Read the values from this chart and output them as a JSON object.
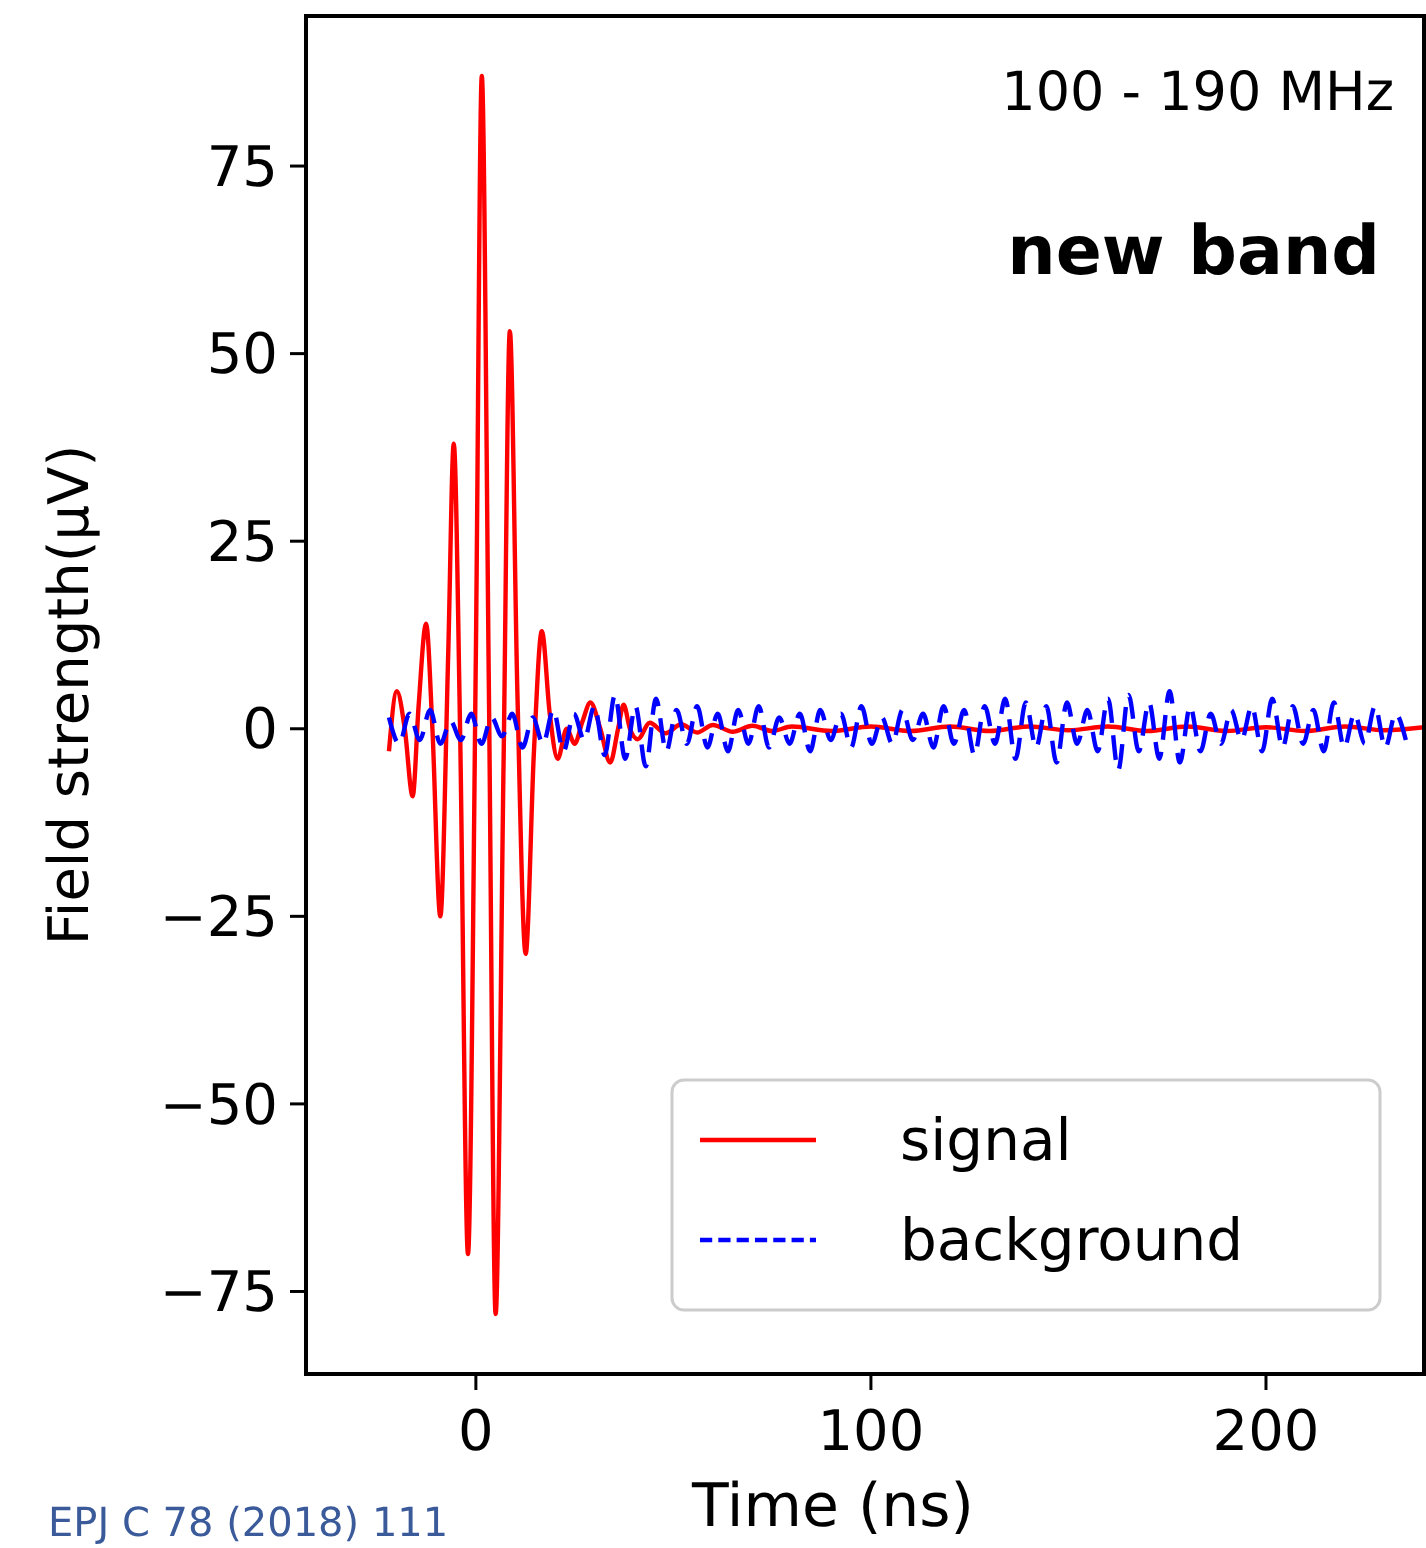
{
  "chart_data": {
    "type": "line",
    "xlabel": "Time (ns)",
    "ylabel": "Field strength(μV)",
    "xlim": [
      -43,
      240
    ],
    "xticks": [
      0,
      100,
      200
    ],
    "ylim": [
      -86,
      95
    ],
    "yticks": [
      {
        "value": -75,
        "label": "−75"
      },
      {
        "value": -50,
        "label": "−50"
      },
      {
        "value": -25,
        "label": "−25"
      },
      0,
      25,
      50,
      75
    ],
    "legend": "bottom right",
    "annotations": [
      "100 - 190 MHz",
      "new band",
      "EPJ C 78 (2018) 111"
    ],
    "series": [
      {
        "name": "signal",
        "color": "#ff0000",
        "line_style": "solid",
        "x": [
          -22,
          -20,
          -18,
          -16,
          -14.5,
          -12.6,
          -11,
          -9,
          -7,
          -5.6,
          -4,
          -2,
          0,
          1.5,
          3.3,
          5,
          7,
          8.6,
          10.5,
          12.6,
          14.7,
          16.7,
          18.7,
          20.7,
          23,
          25,
          27,
          29,
          31.5,
          34,
          36,
          37.4,
          39,
          41,
          44,
          48,
          52,
          56,
          60,
          65,
          70,
          75,
          80,
          90,
          100,
          110,
          120,
          130,
          140,
          150,
          160,
          170,
          180,
          190,
          200,
          210,
          220,
          230,
          240
        ],
        "values": [
          -3,
          5,
          0,
          -9,
          3,
          14,
          0,
          -25,
          10,
          38,
          0,
          -70,
          10,
          87,
          5,
          -78,
          -5,
          53,
          5,
          -30,
          -3,
          13,
          2,
          -4,
          0,
          -2,
          1,
          3.5,
          0,
          -4.5,
          0,
          3.2,
          0,
          -1.4,
          0.8,
          -0.6,
          0.6,
          -0.5,
          0.5,
          -0.4,
          0.4,
          -0.3,
          0.3,
          -0.3,
          0.3,
          -0.3,
          0.3,
          -0.3,
          0.3,
          -0.2,
          0.3,
          -0.3,
          0.3,
          -0.3,
          0.2,
          -0.3,
          0.3,
          -0.2,
          0.2
        ]
      },
      {
        "name": "background",
        "color": "#0000ff",
        "line_style": "dashed",
        "x": [
          -22,
          -19.4,
          -16.8,
          -14.2,
          -11.6,
          -9,
          -6.4,
          -3.8,
          -1.2,
          1.4,
          4,
          6.6,
          9.2,
          11.8,
          14.4,
          17,
          19.6,
          22.2,
          24.8,
          27.4,
          30,
          32.6,
          35.2,
          37.8,
          40.4,
          43,
          45.6,
          48.2,
          50.8,
          53.4,
          56,
          58.6,
          61.2,
          63.8,
          66.4,
          69,
          71.6,
          74.2,
          76.8,
          79.4,
          82,
          84.6,
          87.2,
          89.8,
          92.4,
          95,
          97.6,
          100.2,
          102.8,
          105.4,
          108,
          110.6,
          113.2,
          115.8,
          118.4,
          121,
          123.6,
          126.2,
          128.8,
          131.4,
          134,
          136.6,
          139.2,
          141.8,
          144.4,
          147,
          149.6,
          152.2,
          154.8,
          157.4,
          160,
          162.6,
          165.2,
          167.8,
          170.4,
          173,
          175.6,
          178.2,
          180.8,
          183.4,
          186,
          188.6,
          191.2,
          193.8,
          196.4,
          199,
          201.6,
          204.2,
          206.8,
          209.4,
          212,
          214.6,
          217.2,
          219.8,
          222.4,
          225,
          227.6,
          230.2,
          232.8,
          235.4
        ],
        "values": [
          1.5,
          -2,
          2,
          -1.5,
          2.5,
          -2,
          1,
          -1.5,
          2,
          -2,
          1.5,
          -1,
          2,
          -2.5,
          1.5,
          -2,
          2.5,
          -3,
          2,
          -1.5,
          3,
          -3.5,
          4.5,
          -4,
          3,
          -5,
          4,
          -3,
          2.5,
          -2,
          3,
          -2.5,
          2,
          -3,
          2.5,
          -2,
          3,
          -2.5,
          1.5,
          -2,
          2,
          -3,
          2.5,
          -1.5,
          2,
          -2.5,
          3,
          -2,
          1.5,
          -2,
          2.5,
          -1.5,
          2,
          -2.5,
          3,
          -2,
          2.5,
          -3.5,
          3,
          -2,
          4,
          -4,
          3.5,
          -2.5,
          3,
          -4.5,
          3.5,
          -2,
          2.5,
          -3,
          4,
          -5.5,
          4.5,
          -3,
          3.5,
          -4,
          5,
          -4.5,
          3,
          -3,
          2,
          -2,
          2.5,
          -1.5,
          3,
          -3,
          4,
          -2.5,
          3,
          -2,
          2.5,
          -3,
          3.5,
          -2.5,
          2,
          -2,
          3,
          -2.5,
          2,
          -1.5
        ]
      }
    ]
  }
}
